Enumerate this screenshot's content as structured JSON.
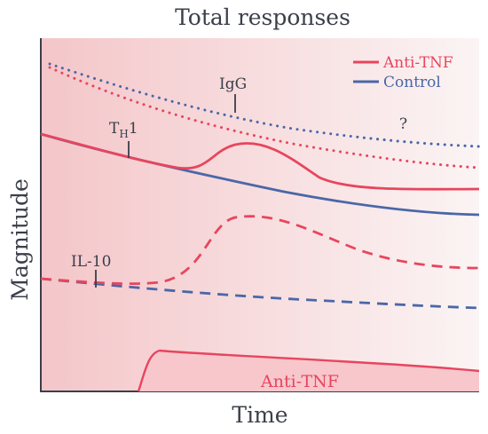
{
  "chart_data": {
    "type": "line",
    "title": "Total responses",
    "xlabel": "Time",
    "ylabel": "Magnitude",
    "legend_position": "top-right",
    "grid": false,
    "colors": {
      "anti_tnf": "#e8455e",
      "control": "#4a67a8",
      "axis": "#3a3f4a",
      "annotation": "#3a3f4a",
      "background_left": "#f4c6c9",
      "background_right": "#fbf4f4",
      "band_fill": "#f7c7cc"
    },
    "legend": [
      {
        "label": "Anti-TNF",
        "color": "#e8455e"
      },
      {
        "label": "Control",
        "color": "#4a67a8"
      }
    ],
    "annotations": {
      "th1_main": "T",
      "th1_sub": "H",
      "th1_tail": "1",
      "igg": "IgG",
      "il10": "IL-10",
      "question": "?",
      "band": "Anti-TNF"
    },
    "series_style": {
      "igg": "dotted",
      "th1": "solid",
      "il10": "dashed",
      "anti_tnf_band": "area"
    }
  }
}
